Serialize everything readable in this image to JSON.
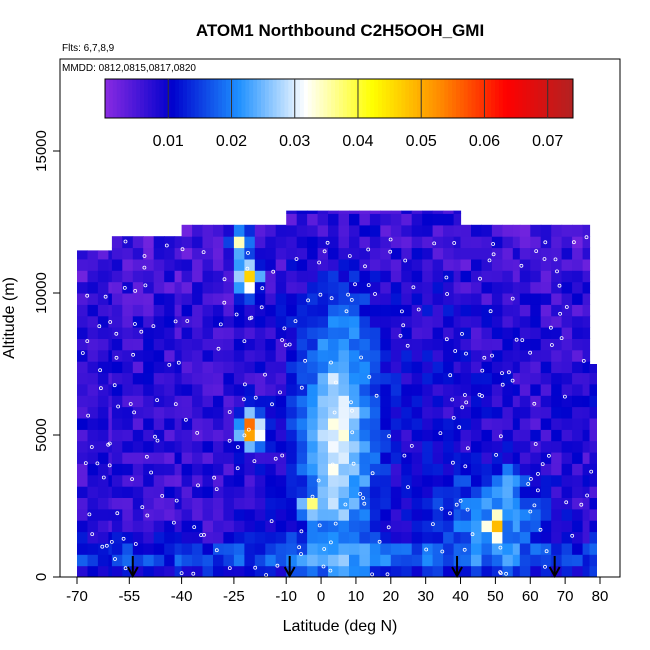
{
  "chart_data": {
    "type": "heatmap",
    "title": "ATOM1 Northbound C2H5OOH_GMI",
    "annotations": [
      "Flts: 6,7,8,9",
      "MMDD: 0812,0815,0817,0820"
    ],
    "xlabel": "Latitude (deg N)",
    "ylabel": "Altitude (m)",
    "xlim": [
      -70,
      80
    ],
    "ylim": [
      0,
      18000
    ],
    "x_ticks": [
      -70,
      -55,
      -40,
      -25,
      -10,
      0,
      10,
      20,
      30,
      40,
      50,
      60,
      70,
      80
    ],
    "y_ticks": [
      0,
      5000,
      10000,
      15000
    ],
    "colorbar": {
      "range": [
        0,
        0.074
      ],
      "ticks": [
        0.01,
        0.02,
        0.03,
        0.04,
        0.05,
        0.06,
        0.07
      ],
      "tick_labels": [
        "0.01",
        "0.02",
        "0.03",
        "0.04",
        "0.05",
        "0.06",
        "0.07"
      ],
      "colors": [
        "#8a2be2",
        "#0000cd",
        "#1e90ff",
        "#ffffff",
        "#ffff00",
        "#ff8c00",
        "#ff0000",
        "#b22222"
      ]
    },
    "arrow_latitudes": [
      -54,
      -9,
      39,
      67
    ],
    "profile_columns": [
      {
        "lat_range": [
          -70,
          -60
        ],
        "top": 11500,
        "background": 0.007
      },
      {
        "lat_range": [
          -60,
          -40
        ],
        "top": 12000,
        "background": 0.007
      },
      {
        "lat_range": [
          -40,
          -25
        ],
        "top": 12400,
        "background": 0.007
      },
      {
        "lat_range": [
          -25,
          -10
        ],
        "top": 12400,
        "background": 0.008
      },
      {
        "lat_range": [
          -10,
          40
        ],
        "top": 12900,
        "background": 0.009
      },
      {
        "lat_range": [
          40,
          57
        ],
        "top": 12400,
        "background": 0.008
      },
      {
        "lat_range": [
          57,
          77
        ],
        "top": 12400,
        "background": 0.007
      },
      {
        "lat_range": [
          77,
          79
        ],
        "top": 7500,
        "background": 0.008
      }
    ],
    "features": [
      {
        "lat": -21,
        "alt": 10600,
        "value": 0.06
      },
      {
        "lat": -23,
        "alt": 11800,
        "value": 0.045
      },
      {
        "lat": -20,
        "alt": 5200,
        "value": 0.06
      },
      {
        "lat": 50,
        "alt": 1800,
        "value": 0.05
      },
      {
        "lat": 5,
        "alt": 5000,
        "value": 0.035
      },
      {
        "lat": -3,
        "alt": 2500,
        "value": 0.035
      },
      {
        "lat": 55,
        "alt": 3300,
        "value": 0.03
      }
    ]
  }
}
